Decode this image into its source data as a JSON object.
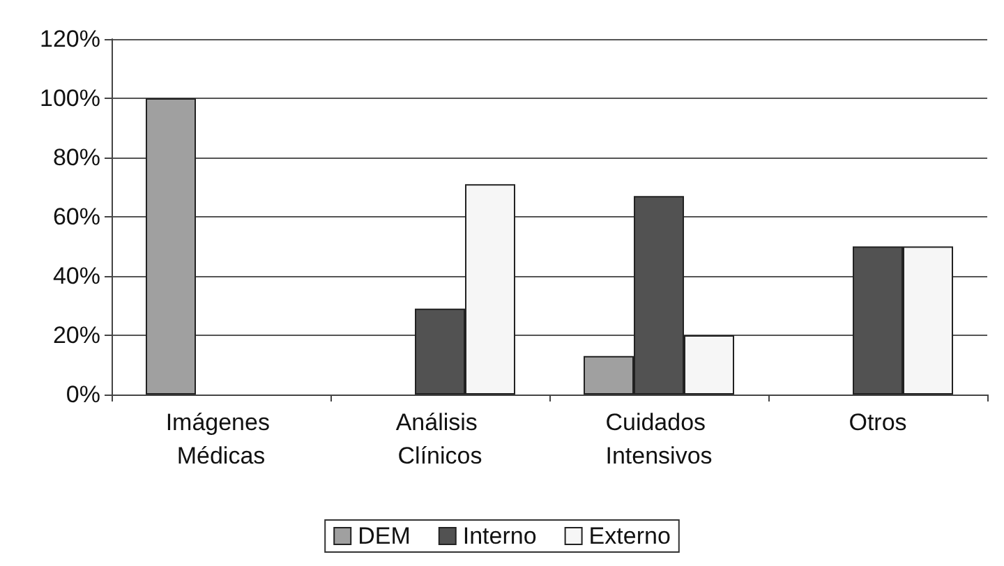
{
  "chart_data": {
    "type": "bar",
    "categories": [
      "Imágenes Médicas",
      "Análisis Clínicos",
      "Cuidados Intensivos",
      "Otros"
    ],
    "series": [
      {
        "name": "DEM",
        "color": "#a0a0a0",
        "values": [
          100,
          null,
          13,
          null
        ]
      },
      {
        "name": "Interno",
        "color": "#525252",
        "values": [
          null,
          29,
          67,
          50
        ]
      },
      {
        "name": "Externo",
        "color": "#f6f6f6",
        "values": [
          null,
          71,
          20,
          50
        ]
      }
    ],
    "ylim": [
      0,
      120
    ],
    "yticks": [
      {
        "value": 0,
        "label": "0%"
      },
      {
        "value": 20,
        "label": "20%"
      },
      {
        "value": 40,
        "label": "40%"
      },
      {
        "value": 60,
        "label": "60%"
      },
      {
        "value": 80,
        "label": "80%"
      },
      {
        "value": 100,
        "label": "100%"
      },
      {
        "value": 120,
        "label": "120%"
      }
    ],
    "grid": "y",
    "legend": "bottom"
  }
}
